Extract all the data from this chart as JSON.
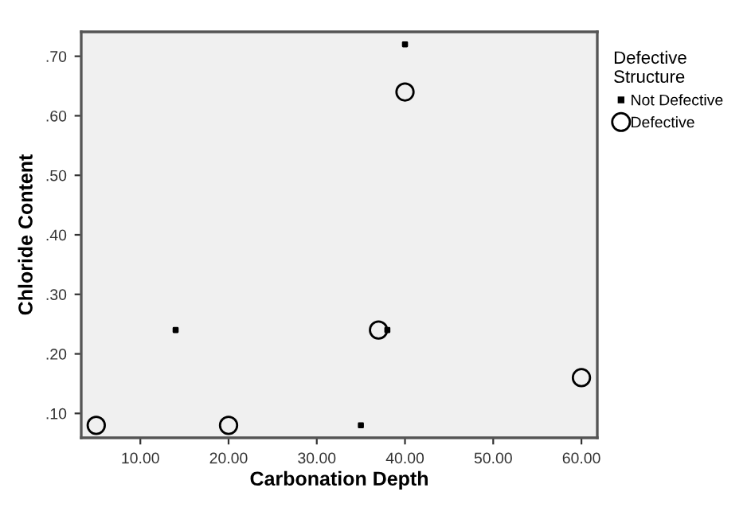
{
  "chart_data": {
    "type": "scatter",
    "xlabel": "Carbonation Depth",
    "ylabel": "Chloride Content",
    "legend_title": "Defective\nStructure",
    "legend": "right",
    "grid": false,
    "xlim": [
      3.3,
      61.8
    ],
    "ylim": [
      0.059,
      0.741
    ],
    "xticks": [
      {
        "value": 10,
        "label": "10.00"
      },
      {
        "value": 20,
        "label": "20.00"
      },
      {
        "value": 30,
        "label": "30.00"
      },
      {
        "value": 40,
        "label": "40.00"
      },
      {
        "value": 50,
        "label": "50.00"
      },
      {
        "value": 60,
        "label": "60.00"
      }
    ],
    "yticks": [
      {
        "value": 0.1,
        "label": ".10"
      },
      {
        "value": 0.2,
        "label": ".20"
      },
      {
        "value": 0.3,
        "label": ".30"
      },
      {
        "value": 0.4,
        "label": ".40"
      },
      {
        "value": 0.5,
        "label": ".50"
      },
      {
        "value": 0.6,
        "label": ".60"
      },
      {
        "value": 0.7,
        "label": ".70"
      }
    ],
    "series": [
      {
        "name": "Not Defective",
        "color": "#000000",
        "marker": "square",
        "x": [
          40,
          14,
          38,
          35
        ],
        "values": [
          0.72,
          0.24,
          0.24,
          0.08
        ]
      },
      {
        "name": "Defective",
        "color": "#000000",
        "marker": "circle",
        "x": [
          5,
          20,
          37,
          40,
          60
        ],
        "values": [
          0.08,
          0.08,
          0.24,
          0.64,
          0.16
        ]
      }
    ]
  }
}
